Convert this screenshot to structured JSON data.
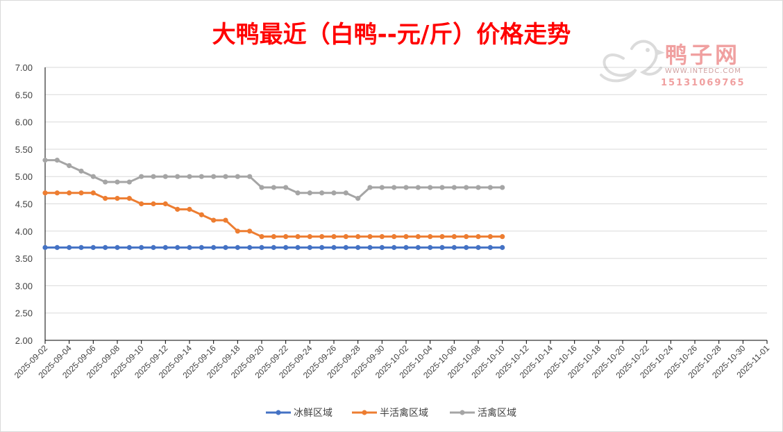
{
  "chart_data": {
    "type": "line",
    "title": "大鸭最近（白鸭--元/斤）价格走势",
    "xlabel": "",
    "ylabel": "",
    "ylim": [
      2.0,
      7.0
    ],
    "yticks": [
      "2.00",
      "2.50",
      "3.00",
      "3.50",
      "4.00",
      "4.50",
      "5.00",
      "5.50",
      "6.00",
      "6.50",
      "7.00"
    ],
    "xlim": [
      "2025-09-02",
      "2025-11-01"
    ],
    "xtick_labels": [
      "2025-09-02",
      "2025-09-04",
      "2025-09-06",
      "2025-09-08",
      "2025-09-10",
      "2025-09-12",
      "2025-09-14",
      "2025-09-16",
      "2025-09-18",
      "2025-09-20",
      "2025-09-22",
      "2025-09-24",
      "2025-09-26",
      "2025-09-28",
      "2025-09-30",
      "2025-10-02",
      "2025-10-04",
      "2025-10-06",
      "2025-10-08",
      "2025-10-10",
      "2025-10-12",
      "2025-10-14",
      "2025-10-16",
      "2025-10-18",
      "2025-10-20",
      "2025-10-22",
      "2025-10-24",
      "2025-10-26",
      "2025-10-28",
      "2025-10-30",
      "2025-11-01"
    ],
    "grid": true,
    "legend_position": "bottom",
    "x": [
      "2025-09-02",
      "2025-09-03",
      "2025-09-04",
      "2025-09-05",
      "2025-09-06",
      "2025-09-07",
      "2025-09-08",
      "2025-09-09",
      "2025-09-10",
      "2025-09-11",
      "2025-09-12",
      "2025-09-13",
      "2025-09-14",
      "2025-09-15",
      "2025-09-16",
      "2025-09-17",
      "2025-09-18",
      "2025-09-19",
      "2025-09-20",
      "2025-09-21",
      "2025-09-22",
      "2025-09-23",
      "2025-09-24",
      "2025-09-25",
      "2025-09-26",
      "2025-09-27",
      "2025-09-28",
      "2025-09-29",
      "2025-09-30",
      "2025-10-01",
      "2025-10-02",
      "2025-10-03",
      "2025-10-04",
      "2025-10-05",
      "2025-10-06",
      "2025-10-07",
      "2025-10-08",
      "2025-10-09",
      "2025-10-10"
    ],
    "series": [
      {
        "name": "冰鲜区域",
        "color": "#4472c4",
        "values": [
          3.7,
          3.7,
          3.7,
          3.7,
          3.7,
          3.7,
          3.7,
          3.7,
          3.7,
          3.7,
          3.7,
          3.7,
          3.7,
          3.7,
          3.7,
          3.7,
          3.7,
          3.7,
          3.7,
          3.7,
          3.7,
          3.7,
          3.7,
          3.7,
          3.7,
          3.7,
          3.7,
          3.7,
          3.7,
          3.7,
          3.7,
          3.7,
          3.7,
          3.7,
          3.7,
          3.7,
          3.7,
          3.7,
          3.7
        ]
      },
      {
        "name": "半活禽区域",
        "color": "#ed7d31",
        "values": [
          4.7,
          4.7,
          4.7,
          4.7,
          4.7,
          4.6,
          4.6,
          4.6,
          4.5,
          4.5,
          4.5,
          4.4,
          4.4,
          4.3,
          4.2,
          4.2,
          4.0,
          4.0,
          3.9,
          3.9,
          3.9,
          3.9,
          3.9,
          3.9,
          3.9,
          3.9,
          3.9,
          3.9,
          3.9,
          3.9,
          3.9,
          3.9,
          3.9,
          3.9,
          3.9,
          3.9,
          3.9,
          3.9,
          3.9
        ]
      },
      {
        "name": "活禽区域",
        "color": "#a5a5a5",
        "values": [
          5.3,
          5.3,
          5.2,
          5.1,
          5.0,
          4.9,
          4.9,
          4.9,
          5.0,
          5.0,
          5.0,
          5.0,
          5.0,
          5.0,
          5.0,
          5.0,
          5.0,
          5.0,
          4.8,
          4.8,
          4.8,
          4.7,
          4.7,
          4.7,
          4.7,
          4.7,
          4.6,
          4.8,
          4.8,
          4.8,
          4.8,
          4.8,
          4.8,
          4.8,
          4.8,
          4.8,
          4.8,
          4.8,
          4.8
        ]
      }
    ]
  },
  "watermark": {
    "brand": "鸭子网",
    "site": "WWW.INTEDC.COM",
    "phone": "15131069765"
  }
}
